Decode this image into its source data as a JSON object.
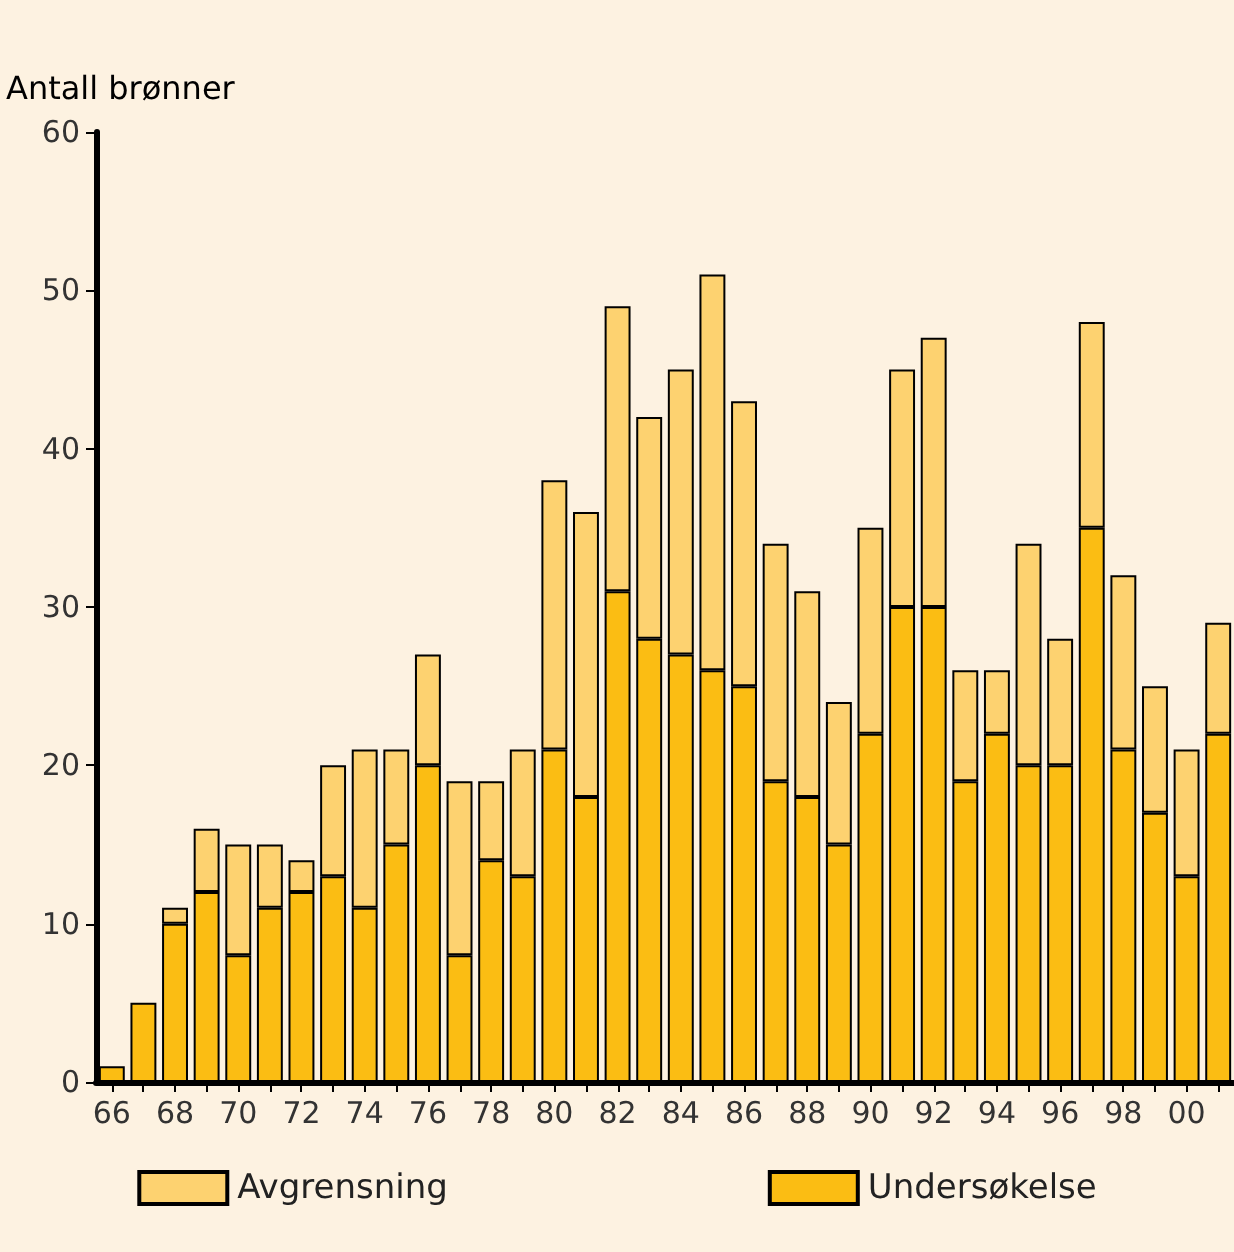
{
  "chart_data": {
    "type": "bar",
    "stacked": true,
    "ylabel": "Antall brønner",
    "categories": [
      "66",
      null,
      "68",
      null,
      "70",
      null,
      "72",
      null,
      "74",
      null,
      "76",
      null,
      "78",
      null,
      "80",
      null,
      "82",
      null,
      "84",
      null,
      "86",
      null,
      "88",
      null,
      "90",
      null,
      "92",
      null,
      "94",
      null,
      "96",
      null,
      "98",
      null,
      "00",
      null
    ],
    "series": [
      {
        "name": "Undersøkelse",
        "color": "#fbbd13",
        "values": [
          1,
          5,
          10,
          12,
          8,
          11,
          12,
          13,
          11,
          15,
          20,
          8,
          14,
          13,
          21,
          18,
          31,
          28,
          27,
          26,
          25,
          19,
          18,
          15,
          22,
          30,
          30,
          19,
          22,
          20,
          20,
          35,
          21,
          17,
          13,
          22
        ]
      },
      {
        "name": "Avgrensning",
        "color": "#fdd270",
        "values": [
          0,
          0,
          1,
          4,
          7,
          4,
          2,
          7,
          10,
          6,
          7,
          11,
          5,
          8,
          17,
          18,
          18,
          14,
          18,
          25,
          18,
          15,
          13,
          9,
          13,
          15,
          17,
          7,
          4,
          14,
          8,
          13,
          11,
          8,
          8,
          7
        ]
      }
    ],
    "ylim": [
      0,
      60
    ],
    "yticks": [
      0,
      10,
      20,
      30,
      40,
      50,
      60
    ],
    "grid": false,
    "legend": "bottom"
  }
}
